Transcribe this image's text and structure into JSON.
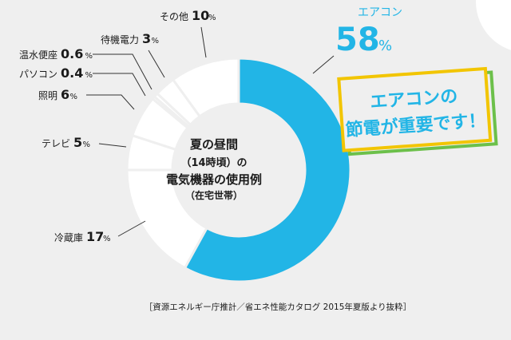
{
  "chart_data": {
    "type": "pie",
    "style": "donut",
    "title_lines": [
      "夏の昼間",
      "（14時頃）の",
      "電気機器の使用例",
      "（在宅世帯）"
    ],
    "unit": "%",
    "slices": [
      {
        "label": "エアコン",
        "value": 58,
        "color": "#22b5e6"
      },
      {
        "label": "冷蔵庫",
        "value": 17,
        "color": "#ffffff"
      },
      {
        "label": "テレビ",
        "value": 5,
        "color": "#ffffff"
      },
      {
        "label": "照明",
        "value": 6,
        "color": "#ffffff"
      },
      {
        "label": "パソコン",
        "value": 0.4,
        "color": "#ffffff"
      },
      {
        "label": "温水便座",
        "value": 0.6,
        "color": "#ffffff"
      },
      {
        "label": "待機電力",
        "value": 3,
        "color": "#ffffff"
      },
      {
        "label": "その他",
        "value": 10,
        "color": "#ffffff"
      }
    ],
    "accent_color": "#22b5e6",
    "source": "［資源エネルギー庁推計／省エネ性能カタログ 2015年夏版より抜粋］"
  },
  "callout": {
    "lines": [
      "エアコンの",
      "節電が重要です！"
    ],
    "text_color": "#22b5e6",
    "border_color_outer": "#f2c500",
    "border_color_inner": "#6cc04a"
  }
}
